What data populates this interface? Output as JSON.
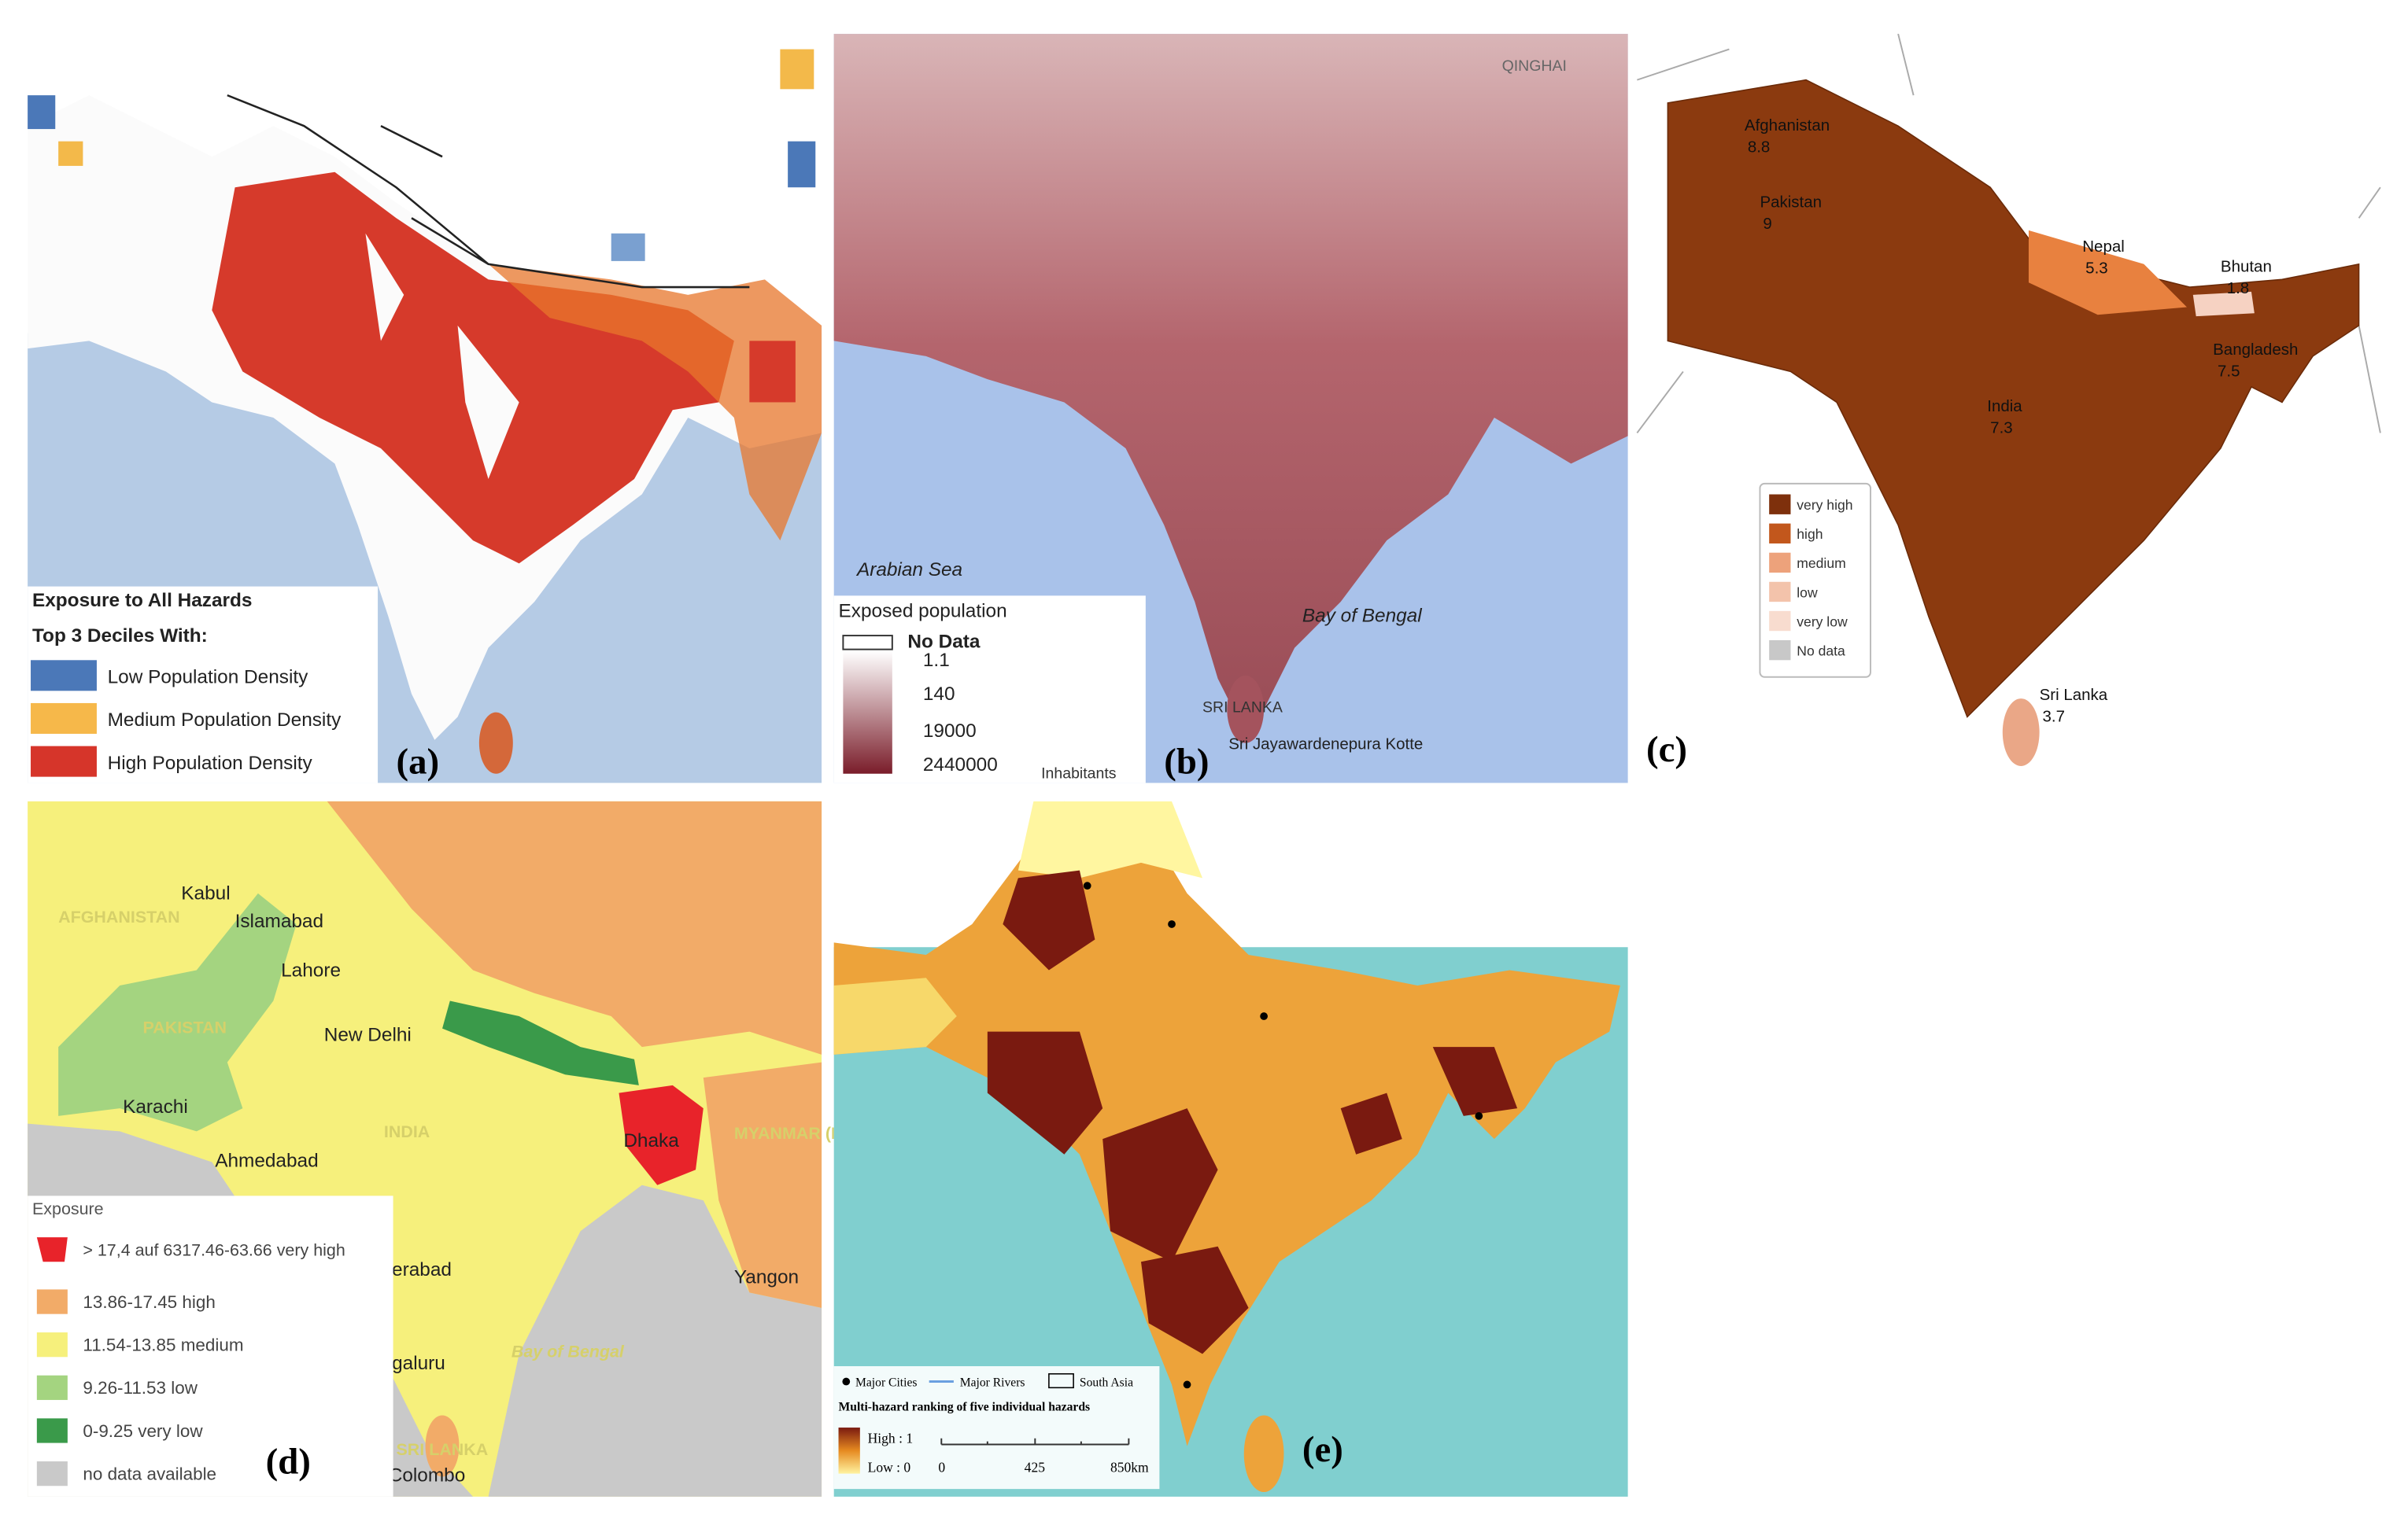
{
  "panels": {
    "a": {
      "label": "(a)",
      "legend": {
        "title": "Exposure to All Hazards",
        "subtitle": "Top 3 Deciles With:",
        "items": [
          "Low Population Density",
          "Medium Population Density",
          "High Population Density"
        ]
      }
    },
    "b": {
      "label": "(b)",
      "places": [
        "QINGHAI",
        "Arabian Sea",
        "Bay of Bengal",
        "SRI LANKA",
        "Sri Jayawardenepura Kotte"
      ],
      "legend": {
        "title": "Exposed population",
        "items": [
          "No Data",
          1.1,
          140,
          19000,
          2440000
        ],
        "unit": "Inhabitants"
      }
    },
    "c": {
      "label": "(c)",
      "countries": [
        {
          "name": "Afghanistan",
          "value": 8.8
        },
        {
          "name": "Pakistan",
          "value": 9
        },
        {
          "name": "Nepal",
          "value": 5.3
        },
        {
          "name": "Bhutan",
          "value": 1.8
        },
        {
          "name": "Bangladesh",
          "value": 7.5
        },
        {
          "name": "India",
          "value": 7.3
        },
        {
          "name": "Sri Lanka",
          "value": 3.7
        }
      ],
      "legend": {
        "items": [
          "very high",
          "high",
          "medium",
          "low",
          "very low",
          "No data"
        ]
      }
    },
    "d": {
      "label": "(d)",
      "places": [
        "Kabul",
        "AFGHANISTAN",
        "Islamabad",
        "Lahore",
        "PAKISTAN",
        "New Delhi",
        "Karachi",
        "INDIA",
        "Ahmedabad",
        "Dhaka",
        "MYANMAR (BURMA)",
        "Hyderabad",
        "Yangon",
        "Bengaluru",
        "Bay of Bengal",
        "SRI LANKA",
        "Colombo"
      ],
      "legend": {
        "title": "Exposure",
        "items": [
          "> 17,4 auf 6317.46-63.66 very high",
          "13.86-17.45 high",
          "11.54-13.85 medium",
          "9.26-11.53 low",
          "0-9.25 very low",
          "no data available"
        ]
      }
    },
    "e": {
      "label": "(e)",
      "legend": {
        "keys": [
          "Major Cities",
          "Major Rivers",
          "South Asia"
        ],
        "title": "Multi-hazard ranking of five individual hazards",
        "high": "High : 1",
        "low": "Low : 0",
        "scale": [
          0,
          425,
          "850km"
        ]
      }
    }
  }
}
